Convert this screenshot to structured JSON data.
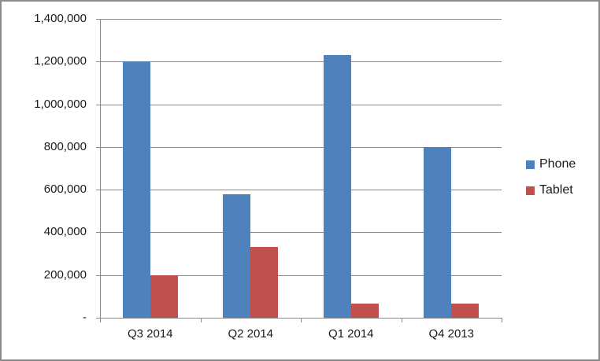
{
  "chart_data": {
    "type": "bar",
    "title": "",
    "categories": [
      "Q3 2014",
      "Q2 2014",
      "Q1 2014",
      "Q4 2013"
    ],
    "series": [
      {
        "name": "Phone",
        "color": "#4F81BD",
        "values": [
          1200000,
          580000,
          1230000,
          800000
        ]
      },
      {
        "name": "Tablet",
        "color": "#C0504D",
        "values": [
          200000,
          330000,
          65000,
          65000
        ]
      }
    ],
    "xlabel": "",
    "ylabel": "",
    "ylim": [
      0,
      1400000
    ],
    "ytick_interval": 200000,
    "ytick_labels": [
      "-",
      "200,000",
      "400,000",
      "600,000",
      "800,000",
      "1,000,000",
      "1,200,000",
      "1,400,000"
    ],
    "grid": true,
    "legend_position": "right",
    "colors": {
      "gridline": "#898989",
      "axis": "#898989",
      "text": "#1a1a1a",
      "frame_border": "#8C8C8C",
      "background": "#FFFFFF"
    }
  }
}
